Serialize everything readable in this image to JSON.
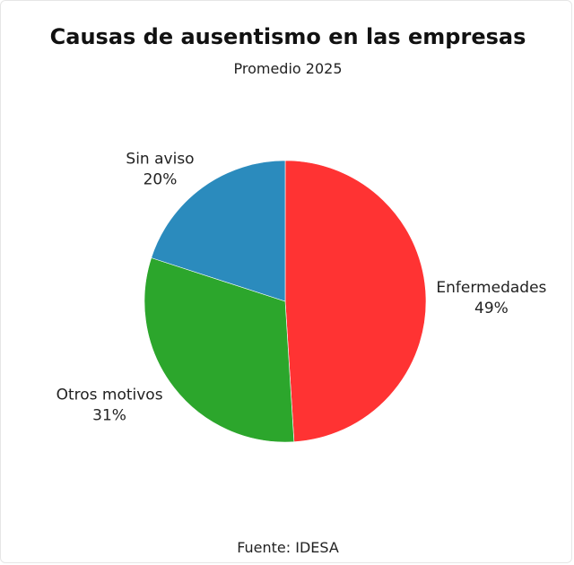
{
  "chart_data": {
    "type": "pie",
    "title": "Causas de ausentismo en las empresas",
    "subtitle": "Promedio 2025",
    "source": "Fuente: IDESA",
    "slices": [
      {
        "label": "Enfermedades",
        "value": 49,
        "value_label": "49%",
        "color": "#ff3333"
      },
      {
        "label": "Otros motivos",
        "value": 31,
        "value_label": "31%",
        "color": "#2ca62c"
      },
      {
        "label": "Sin aviso",
        "value": 20,
        "value_label": "20%",
        "color": "#2b8bbd"
      }
    ]
  }
}
